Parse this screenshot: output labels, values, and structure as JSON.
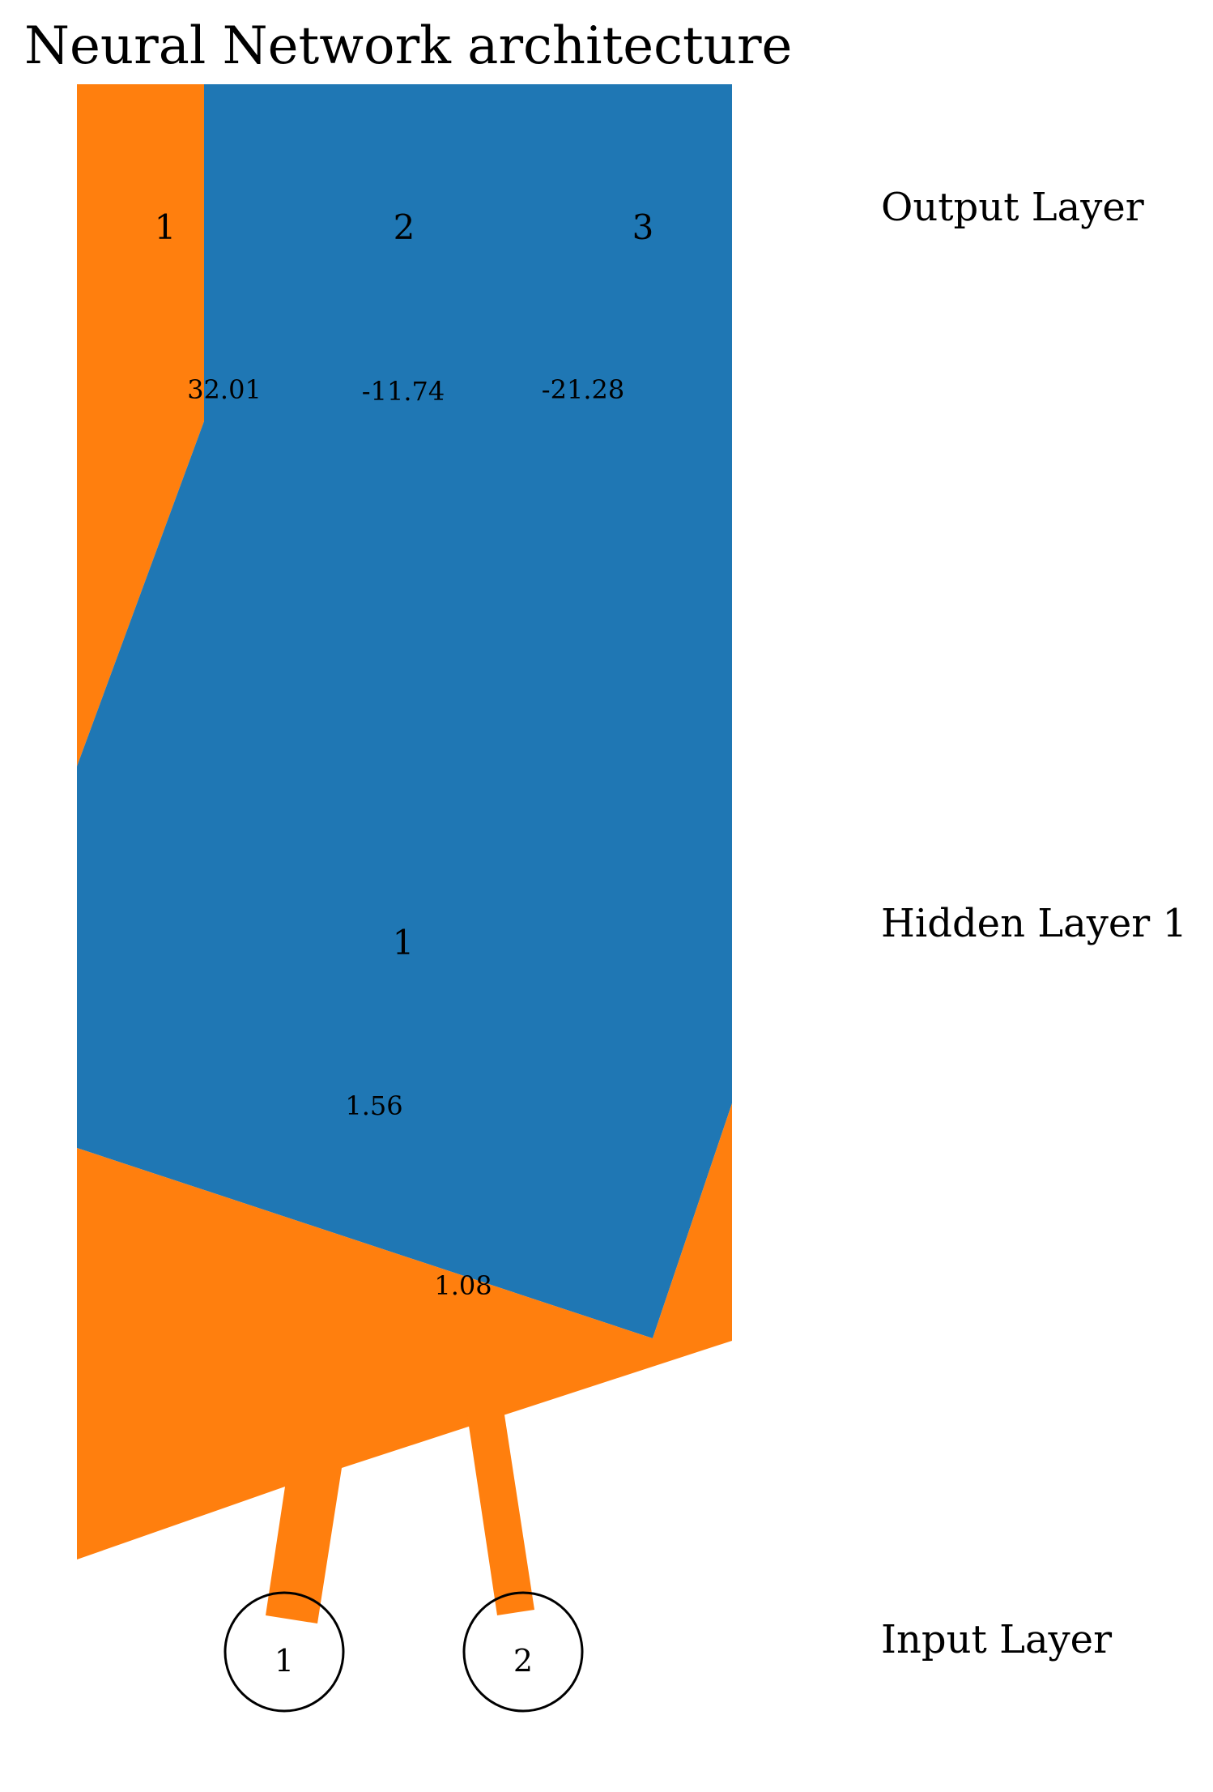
{
  "title": "Neural Network architecture",
  "colors": {
    "positive_weight": "#ff7f0e",
    "negative_weight": "#1f77b4",
    "node_stroke": "#000000"
  },
  "layers": [
    {
      "name": "Input Layer",
      "nodes": [
        "1",
        "2"
      ]
    },
    {
      "name": "Hidden Layer 1",
      "nodes": [
        "1"
      ]
    },
    {
      "name": "Output Layer",
      "nodes": [
        "1",
        "2",
        "3"
      ]
    }
  ],
  "weights": {
    "input_to_hidden": [
      "1.56",
      "1.08"
    ],
    "hidden_to_output": [
      "32.01",
      "-11.74",
      "-21.28"
    ]
  }
}
